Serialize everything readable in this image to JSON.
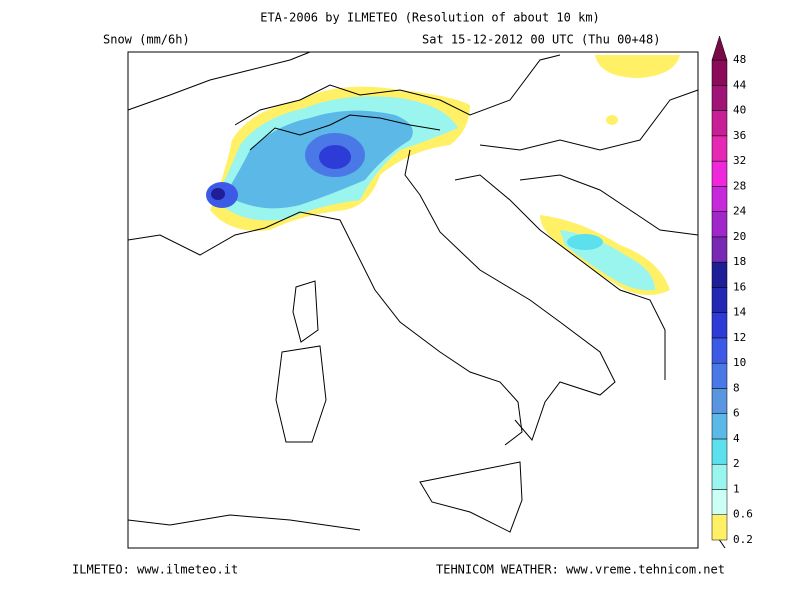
{
  "header": {
    "title": "ETA-2006 by ILMETEO (Resolution of about 10 km)",
    "variable": "Snow (mm/6h)",
    "valid_time": "Sat 15-12-2012 00 UTC (Thu 00+48)"
  },
  "colorbar": {
    "labels": [
      "0.2",
      "0.6",
      "1",
      "2",
      "4",
      "6",
      "8",
      "10",
      "12",
      "14",
      "16",
      "18",
      "20",
      "24",
      "28",
      "32",
      "36",
      "40",
      "44",
      "48"
    ],
    "colors": [
      "#fff066",
      "#ccfff5",
      "#99f5ee",
      "#5ce0ee",
      "#5cb8e6",
      "#5a95e0",
      "#4a78e6",
      "#3c5ae6",
      "#2d3cd6",
      "#2328b4",
      "#1e1e96",
      "#7828b4",
      "#a028c8",
      "#c828dc",
      "#f028dc",
      "#e628b4",
      "#c81e96",
      "#a01478",
      "#8c0a5a",
      "#780a46"
    ]
  },
  "footer": {
    "left": "ILMETEO: www.ilmeteo.it",
    "right": "TEHNICOM WEATHER: www.vreme.tehnicom.net"
  }
}
